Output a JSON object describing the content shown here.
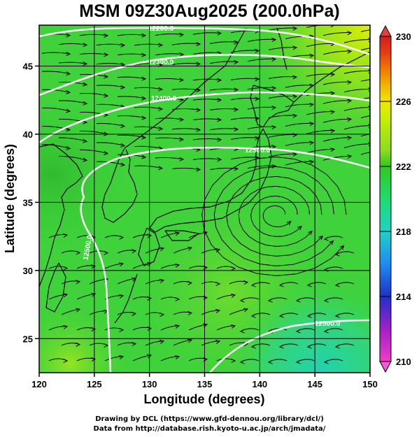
{
  "title": "MSM 09Z30Aug2025 (200.0hPa)",
  "footer": {
    "line1": "Drawing by DCL (https://www.gfd-dennou.org/library/dcl/)",
    "line2": "Data from http://database.rish.kyoto-u.ac.jp/arch/jmadata/"
  },
  "chart_data": {
    "type": "heatmap",
    "xlabel": "Longitude (degrees)",
    "ylabel": "Latitude  (degrees)",
    "xlim": [
      120,
      150
    ],
    "ylim": [
      22.5,
      48
    ],
    "x_ticks": [
      120,
      125,
      130,
      135,
      140,
      145,
      150
    ],
    "y_ticks": [
      25,
      30,
      35,
      40,
      45
    ],
    "grid": true,
    "colorbar": {
      "range": [
        210,
        230
      ],
      "tick_labels": [
        210,
        214,
        218,
        222,
        226,
        230
      ],
      "colors": {
        "210": "#f03cc8",
        "212": "#a020c8",
        "214": "#2030c8",
        "216": "#1e8cf0",
        "218": "#1ed2c8",
        "220": "#1edc6e",
        "222": "#32c81e",
        "223": "#8cdc1e",
        "225": "#c8f000",
        "226": "#f0e600",
        "227": "#f0b400",
        "228": "#f07800",
        "229": "#e63c14",
        "230": "#d21e1e"
      }
    },
    "contours": [
      {
        "label": "12200.0",
        "lon": 130.3,
        "lat": 47.8
      },
      {
        "label": "12300.0",
        "lon": 130.5,
        "lat": 45.5
      },
      {
        "label": "12400.0",
        "lon": 130.9,
        "lat": 42.8
      },
      {
        "label": "12500.0",
        "lon": 139.7,
        "lat": 39.7
      },
      {
        "label": "12500.0",
        "lon": 126.3,
        "lat": 31.3
      },
      {
        "label": "12500.0",
        "lon": 145.5,
        "lat": 26.5
      }
    ],
    "vortex_center": {
      "lon": 141.5,
      "lat": 34.1
    },
    "background_colors": {
      "main_green": "#3fd23a",
      "yellow_northeast": "#d8f000",
      "cyan_southeast": "#28d69a"
    }
  }
}
